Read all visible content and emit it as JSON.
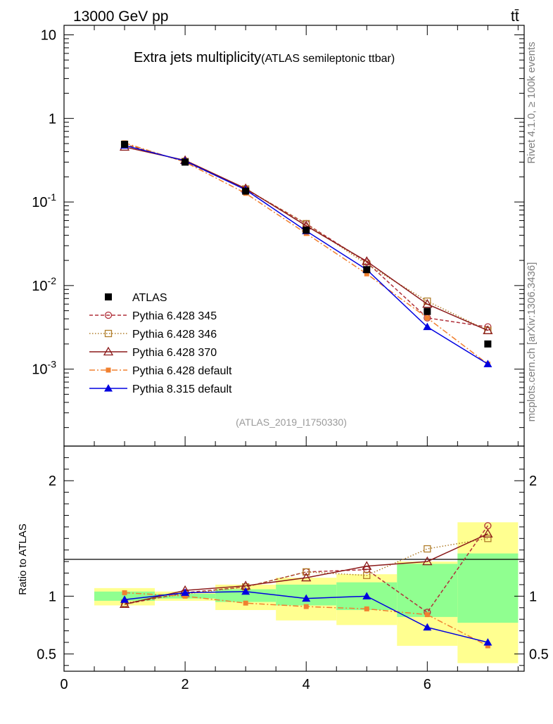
{
  "header": {
    "left_label": "13000 GeV pp",
    "right_label": "tt̄"
  },
  "side_labels": {
    "rivet": "Rivet 4.1.0, ≥ 100k events",
    "source": "mcplots.cern.ch [arXiv:1306.3436]"
  },
  "chart_data": {
    "type": "line",
    "title": "Extra jets multiplicity",
    "subtitle": "(ATLAS semileptonic ttbar)",
    "watermark": "(ATLAS_2019_I1750330)",
    "x": [
      1,
      2,
      3,
      4,
      5,
      6,
      7
    ],
    "xlim": [
      0,
      7.6
    ],
    "x_ticks": [
      "0",
      "2",
      "4",
      "6"
    ],
    "main": {
      "yscale": "log",
      "ylim": [
        0.00012,
        13
      ],
      "y_tick_labels": [
        "10",
        "1",
        "10^-1",
        "10^-2",
        "10^-3"
      ],
      "data": {
        "name": "ATLAS",
        "values": [
          0.49,
          0.3,
          0.135,
          0.046,
          0.0155,
          0.0049,
          0.002
        ]
      },
      "series": [
        {
          "name": "Pythia 6.428 345",
          "color": "#b0303a",
          "dash": "5,3",
          "marker": "circle",
          "values": [
            0.49,
            0.305,
            0.142,
            0.055,
            0.019,
            0.0041,
            0.0032
          ]
        },
        {
          "name": "Pythia 6.428 346",
          "color": "#b07d2a",
          "dash": "1.5,2.5",
          "marker": "square",
          "values": [
            0.49,
            0.305,
            0.143,
            0.055,
            0.018,
            0.0065,
            0.0029
          ]
        },
        {
          "name": "Pythia 6.428 370",
          "color": "#8b1a1a",
          "dash": "",
          "marker": "triangle",
          "values": [
            0.455,
            0.315,
            0.145,
            0.052,
            0.0195,
            0.006,
            0.0029
          ]
        },
        {
          "name": "Pythia 6.428 default",
          "color": "#f08030",
          "dash": "8,3,2,3",
          "marker": "smallsquare",
          "values": [
            0.51,
            0.3,
            0.127,
            0.042,
            0.0138,
            0.0041,
            0.00115
          ]
        },
        {
          "name": "Pythia 8.315 default",
          "color": "#0000e0",
          "dash": "",
          "marker": "filledtriangle",
          "values": [
            0.475,
            0.31,
            0.14,
            0.045,
            0.0155,
            0.0032,
            0.00115
          ]
        }
      ]
    },
    "ratio": {
      "ylabel": "Ratio to ATLAS",
      "ylim": [
        0.35,
        2.3
      ],
      "y_ticks": [
        "0.5",
        "1",
        "2"
      ],
      "band_inner": [
        [
          0.96,
          1.04
        ],
        [
          0.98,
          1.02
        ],
        [
          0.95,
          1.06
        ],
        [
          0.92,
          1.1
        ],
        [
          0.88,
          1.12
        ],
        [
          0.82,
          1.28
        ],
        [
          0.77,
          1.37
        ]
      ],
      "band_outer": [
        [
          0.92,
          1.07
        ],
        [
          0.96,
          1.04
        ],
        [
          0.88,
          1.1
        ],
        [
          0.79,
          1.16
        ],
        [
          0.75,
          1.19
        ],
        [
          0.57,
          1.3
        ],
        [
          0.42,
          1.64
        ]
      ],
      "series": [
        {
          "name": "Pythia 6.428 345",
          "values": [
            0.93,
            1.03,
            1.08,
            1.21,
            1.23,
            0.86,
            1.61
          ]
        },
        {
          "name": "Pythia 6.428 346",
          "values": [
            0.94,
            1.02,
            1.08,
            1.21,
            1.18,
            1.41,
            1.5
          ]
        },
        {
          "name": "Pythia 6.428 370",
          "values": [
            0.93,
            1.05,
            1.09,
            1.16,
            1.26,
            1.3,
            1.54
          ]
        },
        {
          "name": "Pythia 6.428 default",
          "values": [
            1.03,
            1.0,
            0.94,
            0.91,
            0.89,
            0.84,
            0.57
          ]
        },
        {
          "name": "Pythia 8.315 default",
          "values": [
            0.97,
            1.03,
            1.04,
            0.98,
            1.0,
            0.73,
            0.6
          ]
        }
      ]
    }
  }
}
